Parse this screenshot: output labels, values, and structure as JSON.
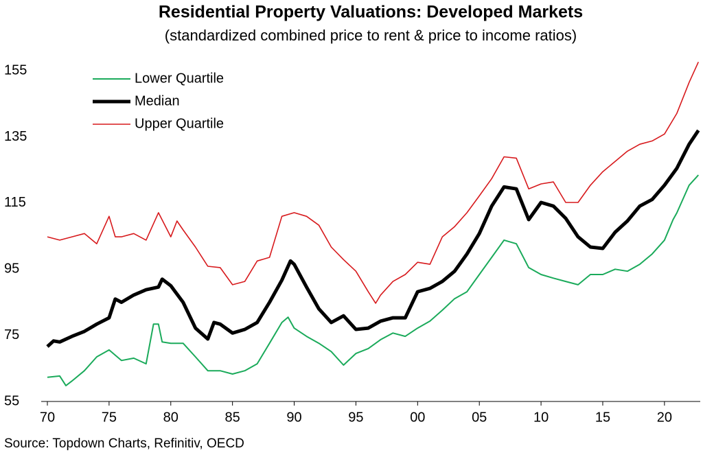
{
  "chart_data": {
    "type": "line",
    "title": "Residential Property Valuations: Developed Markets",
    "subtitle": "(standardized combined price to rent & price to income ratios)",
    "source": "Source: Topdown Charts, Refinitiv, OECD",
    "legend": "top-left",
    "grid": false,
    "xlim": [
      1969.5,
      2022.9
    ],
    "xticks": [
      {
        "value": 1970,
        "label": "70"
      },
      {
        "value": 1975,
        "label": "75"
      },
      {
        "value": 1980,
        "label": "80"
      },
      {
        "value": 1985,
        "label": "85"
      },
      {
        "value": 1990,
        "label": "90"
      },
      {
        "value": 1995,
        "label": "95"
      },
      {
        "value": 2000,
        "label": "00"
      },
      {
        "value": 2005,
        "label": "05"
      },
      {
        "value": 2010,
        "label": "10"
      },
      {
        "value": 2015,
        "label": "15"
      },
      {
        "value": 2020,
        "label": "20"
      }
    ],
    "ylim": [
      55,
      159
    ],
    "yticks": [
      55,
      75,
      95,
      115,
      135,
      155
    ],
    "series": [
      {
        "name": "Lower Quartile",
        "color": "#1aaa5a",
        "width": 2,
        "x": [
          1970,
          1971,
          1971.5,
          1972,
          1973,
          1974,
          1975,
          1976,
          1977,
          1978,
          1978.6,
          1979,
          1979.3,
          1980,
          1981,
          1982,
          1983,
          1984,
          1985,
          1986,
          1987,
          1988,
          1989,
          1989.5,
          1990,
          1991,
          1992,
          1993,
          1994,
          1995,
          1996,
          1997,
          1998,
          1999,
          2000,
          2001,
          2002,
          2003,
          2004,
          2005,
          2006,
          2007,
          2008,
          2009,
          2010,
          2011,
          2012,
          2013,
          2014,
          2015,
          2016,
          2017,
          2018,
          2019,
          2020,
          2020.7,
          2021,
          2022,
          2022.75
        ],
        "values": [
          62.3,
          62.7,
          59.8,
          61.2,
          64.3,
          68.5,
          70.6,
          67.4,
          68.1,
          66.4,
          78.4,
          78.4,
          73,
          72.6,
          72.6,
          68.5,
          64.3,
          64.3,
          63.3,
          64.3,
          66.4,
          72.6,
          78.9,
          80.5,
          77.2,
          74.7,
          72.6,
          70.1,
          66,
          69.5,
          71,
          73.7,
          75.7,
          74.7,
          77.2,
          79.3,
          82.6,
          86.1,
          88.2,
          93.4,
          98.6,
          103.8,
          102.7,
          95.5,
          93.4,
          92.3,
          91.3,
          90.3,
          93.4,
          93.4,
          95,
          94.4,
          96.5,
          99.6,
          103.8,
          110,
          112,
          120.4,
          123.5
        ]
      },
      {
        "name": "Median",
        "color": "#000000",
        "width": 5,
        "x": [
          1970,
          1970.5,
          1971,
          1972,
          1973,
          1974,
          1975,
          1975.5,
          1976,
          1977,
          1978,
          1979,
          1979.3,
          1980,
          1981,
          1982,
          1983,
          1983.5,
          1984,
          1985,
          1986,
          1987,
          1988,
          1989,
          1989.7,
          1990,
          1991,
          1992,
          1993,
          1994,
          1995,
          1996,
          1997,
          1998,
          1999,
          2000,
          2001,
          2002,
          2003,
          2004,
          2005,
          2006,
          2007,
          2008,
          2009,
          2010,
          2011,
          2012,
          2013,
          2014,
          2015,
          2016,
          2017,
          2018,
          2019,
          2020,
          2021,
          2022,
          2022.75
        ],
        "values": [
          71.6,
          73.3,
          73,
          74.7,
          76.2,
          78.4,
          80.3,
          86,
          85,
          87.2,
          88.8,
          89.6,
          92,
          90,
          85,
          77.2,
          73.9,
          78.9,
          78.4,
          75.7,
          76.8,
          78.9,
          85,
          91.7,
          97.5,
          96.5,
          89.6,
          83,
          78.9,
          80.9,
          76.8,
          77.2,
          79.3,
          80.3,
          80.3,
          88.2,
          89.2,
          91.3,
          94.4,
          99.6,
          105.8,
          114.1,
          119.9,
          119.3,
          110,
          115.2,
          114.1,
          110.4,
          104.8,
          101.7,
          101.3,
          106.2,
          109.6,
          114.1,
          116.1,
          120.4,
          125.5,
          132.8,
          137
        ]
      },
      {
        "name": "Upper Quartile",
        "color": "#d7191c",
        "width": 1.6,
        "x": [
          1970,
          1971,
          1972,
          1973,
          1974,
          1975,
          1975.5,
          1976,
          1977,
          1978,
          1979,
          1980,
          1980.5,
          1981,
          1982,
          1983,
          1984,
          1985,
          1986,
          1987,
          1988,
          1989,
          1990,
          1991,
          1992,
          1993,
          1994,
          1995,
          1996,
          1996.6,
          1997,
          1998,
          1999,
          2000,
          2001,
          2002,
          2003,
          2004,
          2005,
          2006,
          2007,
          2008,
          2009,
          2010,
          2011,
          2012,
          2013,
          2014,
          2015,
          2016,
          2017,
          2018,
          2019,
          2020,
          2021,
          2022,
          2022.75
        ],
        "values": [
          104.8,
          103.8,
          104.8,
          105.8,
          102.7,
          111,
          104.8,
          104.8,
          105.8,
          103.8,
          112.1,
          104.8,
          109.6,
          106.9,
          101.7,
          95.9,
          95.5,
          90.3,
          91.3,
          97.5,
          98.6,
          111,
          112.1,
          111,
          108.3,
          101.7,
          97.9,
          94.4,
          88.2,
          84.7,
          87.2,
          91.3,
          93.4,
          97.1,
          96.5,
          104.8,
          107.9,
          112.1,
          117.2,
          122.4,
          129,
          128.6,
          119.3,
          120.8,
          121.4,
          115.2,
          115.2,
          120.4,
          124.5,
          127.6,
          130.7,
          132.8,
          133.8,
          135.9,
          142.1,
          151.5,
          157.7
        ]
      }
    ]
  }
}
